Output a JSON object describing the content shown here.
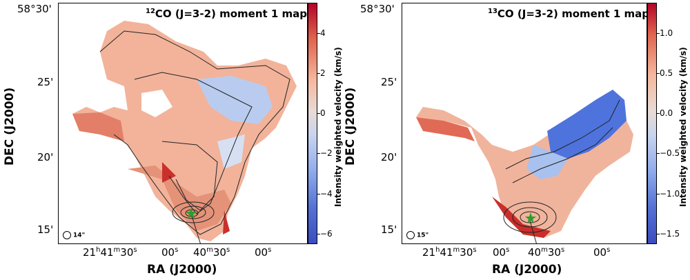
{
  "panels": {
    "left": {
      "title_iso": "12",
      "title_rest": "CO (J=3-2) moment 1 map",
      "beam": "14\"",
      "colorbar_label": "Intensity weighted velocity (km/s)",
      "colorbar_ticks": [
        "4",
        "2",
        "0",
        "−2",
        "−4",
        "−6"
      ]
    },
    "right": {
      "title_iso": "13",
      "title_rest": "CO (J=3-2) moment 1 map",
      "beam": "15\"",
      "colorbar_label": "Intensity weighted velocity (km/s)",
      "colorbar_ticks": [
        "1.0",
        "0.5",
        "0.0",
        "−0.5",
        "−1.0",
        "−1.5"
      ]
    }
  },
  "axes": {
    "yticks": [
      "58°30'",
      "25'",
      "20'",
      "15'"
    ],
    "xticks": [
      {
        "main": "21",
        "sup1": "h",
        "mid": "41",
        "sup2": "m",
        "end": "30",
        "sup3": "s"
      },
      {
        "main": "00",
        "sup1": "s"
      },
      {
        "main": "40",
        "sup1": "m",
        "end": "30",
        "sup2": "s"
      },
      {
        "main": "00",
        "sup1": "s"
      }
    ],
    "ylabel": "DEC (J2000)",
    "xlabel": "RA (J2000)"
  },
  "colors": {
    "red": "#c9302c",
    "salmon": "#f3a487",
    "light": "#efd6c8",
    "blue_light": "#a9c3f0",
    "blue": "#5b7fe0",
    "star": "#2e9d2e"
  }
}
